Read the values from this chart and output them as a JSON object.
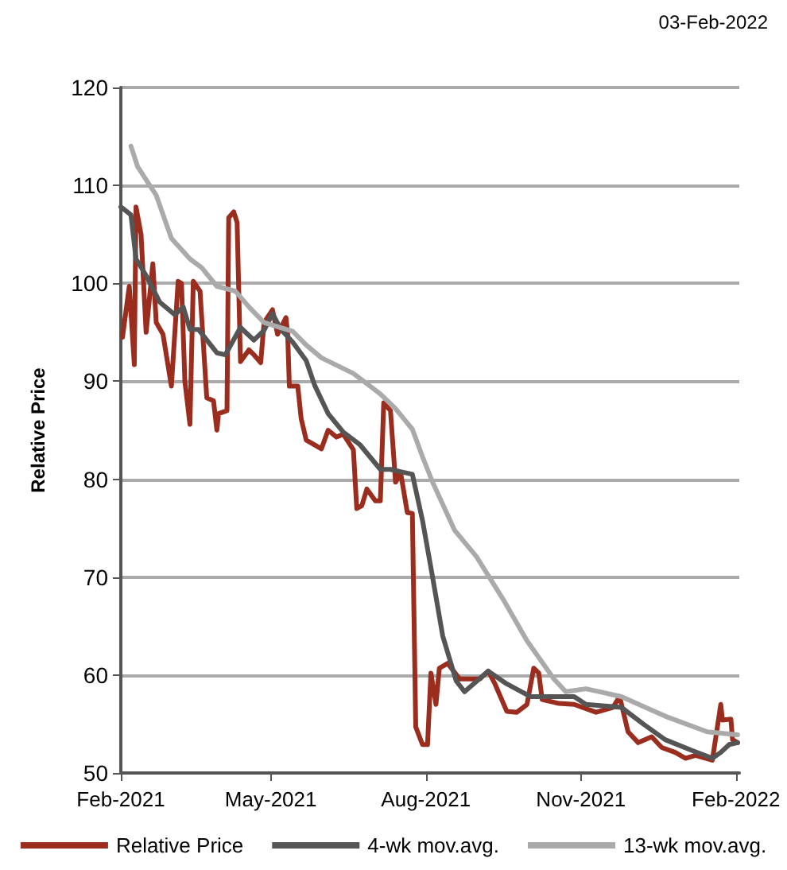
{
  "chart_data": {
    "type": "line",
    "annotations": [
      "03-Feb-2022"
    ],
    "ylabel": "Relative Price",
    "xlim": [
      "2021-02-01",
      "2022-02-03"
    ],
    "xticks": [
      {
        "value": "2021-02-01",
        "label": "Feb-2021"
      },
      {
        "value": "2021-05-01",
        "label": "May-2021"
      },
      {
        "value": "2021-08-01",
        "label": "Aug-2021"
      },
      {
        "value": "2021-11-01",
        "label": "Nov-2021"
      },
      {
        "value": "2022-02-01",
        "label": "Feb-2022"
      }
    ],
    "ylim": [
      50,
      120
    ],
    "yticks": [
      50,
      60,
      70,
      80,
      90,
      100,
      110,
      120
    ],
    "grid": "y",
    "legend": "bottom",
    "marker": "none",
    "line_style": "solid",
    "series": [
      {
        "name": "Relative Price",
        "color": "#9b2d1f",
        "x": [
          "2021-02-02",
          "2021-02-06",
          "2021-02-09",
          "2021-02-10",
          "2021-02-13",
          "2021-02-16",
          "2021-02-20",
          "2021-02-22",
          "2021-02-26",
          "2021-03-03",
          "2021-03-07",
          "2021-03-09",
          "2021-03-11",
          "2021-03-14",
          "2021-03-16",
          "2021-03-20",
          "2021-03-24",
          "2021-03-28",
          "2021-03-30",
          "2021-03-31",
          "2021-04-05",
          "2021-04-06",
          "2021-04-09",
          "2021-04-11",
          "2021-04-13",
          "2021-04-18",
          "2021-04-21",
          "2021-04-25",
          "2021-04-27",
          "2021-05-02",
          "2021-05-05",
          "2021-05-10",
          "2021-05-11",
          "2021-05-12",
          "2021-05-17",
          "2021-05-19",
          "2021-05-22",
          "2021-05-31",
          "2021-06-04",
          "2021-06-09",
          "2021-06-13",
          "2021-06-19",
          "2021-06-21",
          "2021-06-24",
          "2021-06-27",
          "2021-07-02",
          "2021-07-05",
          "2021-07-07",
          "2021-07-11",
          "2021-07-14",
          "2021-07-17",
          "2021-07-21",
          "2021-07-24",
          "2021-07-26",
          "2021-07-30",
          "2021-08-02",
          "2021-08-04",
          "2021-08-07",
          "2021-08-09",
          "2021-08-14",
          "2021-08-21",
          "2021-09-02",
          "2021-09-07",
          "2021-09-11",
          "2021-09-18",
          "2021-09-24",
          "2021-09-30",
          "2021-10-04",
          "2021-10-07",
          "2021-10-09",
          "2021-10-19",
          "2021-10-28",
          "2021-11-10",
          "2021-11-20",
          "2021-11-24",
          "2021-11-29",
          "2021-12-05",
          "2021-12-13",
          "2021-12-19",
          "2021-12-27",
          "2022-01-02",
          "2022-01-08",
          "2022-01-18",
          "2022-01-23",
          "2022-01-24",
          "2022-01-29",
          "2022-01-30",
          "2022-02-02"
        ],
        "values": [
          94.5,
          99.7,
          91.7,
          107.8,
          105,
          95,
          102,
          96,
          94.8,
          89.5,
          100.2,
          100,
          90,
          85.6,
          100.2,
          99.2,
          88.3,
          88,
          85,
          86.7,
          87,
          106.7,
          107.3,
          106.2,
          92,
          93.2,
          92.7,
          91.9,
          96,
          97.3,
          94.8,
          96.5,
          94.8,
          89.5,
          89.5,
          86.2,
          84,
          83.1,
          85,
          84.3,
          84.6,
          83,
          77,
          77.3,
          79,
          77.8,
          77.8,
          87.8,
          87,
          79.7,
          80.7,
          76.6,
          76.5,
          54.7,
          52.9,
          52.9,
          60.2,
          57,
          60.7,
          61.2,
          59.6,
          59.6,
          60.4,
          59.1,
          56.3,
          56.2,
          57,
          60.7,
          60.2,
          57.5,
          57.1,
          57,
          56.2,
          56.7,
          57.8,
          54.2,
          53.1,
          53.7,
          52.6,
          52.1,
          51.5,
          51.8,
          51.3,
          57,
          55.4,
          55.5,
          53.4,
          53.1
        ]
      },
      {
        "name": "4-wk mov.avg.",
        "color": "#555555",
        "x": [
          "2021-02-01",
          "2021-02-07",
          "2021-02-10",
          "2021-02-16",
          "2021-02-24",
          "2021-03-05",
          "2021-03-10",
          "2021-03-14",
          "2021-03-19",
          "2021-03-30",
          "2021-04-04",
          "2021-04-13",
          "2021-04-21",
          "2021-04-27",
          "2021-05-02",
          "2021-05-07",
          "2021-05-14",
          "2021-05-22",
          "2021-05-27",
          "2021-06-04",
          "2021-06-13",
          "2021-06-23",
          "2021-07-05",
          "2021-07-11",
          "2021-07-24",
          "2021-07-30",
          "2021-08-05",
          "2021-08-11",
          "2021-08-19",
          "2021-08-24",
          "2021-09-07",
          "2021-09-18",
          "2021-10-02",
          "2021-10-28",
          "2021-11-04",
          "2021-11-25",
          "2021-12-08",
          "2021-12-21",
          "2022-01-06",
          "2022-01-18",
          "2022-01-23",
          "2022-01-28",
          "2022-02-02"
        ],
        "values": [
          107.8,
          107,
          102.5,
          100.8,
          98.1,
          96.8,
          97.6,
          95.3,
          95.3,
          92.9,
          92.7,
          95.5,
          94.2,
          95.2,
          96.9,
          95.3,
          94,
          92.1,
          89.6,
          86.7,
          84.8,
          83.5,
          81,
          81,
          80.5,
          75.8,
          70,
          64,
          59.4,
          58.3,
          60.4,
          59.1,
          57.8,
          57.8,
          57,
          56.7,
          55,
          53.4,
          52.3,
          51.5,
          52.1,
          52.9,
          53.1
        ]
      },
      {
        "name": "13-wk mov.avg.",
        "color": "#aaaaaa",
        "x": [
          "2021-02-07",
          "2021-02-11",
          "2021-02-17",
          "2021-02-22",
          "2021-03-03",
          "2021-03-14",
          "2021-03-21",
          "2021-03-30",
          "2021-04-10",
          "2021-04-18",
          "2021-04-27",
          "2021-05-14",
          "2021-05-22",
          "2021-05-31",
          "2021-06-19",
          "2021-07-05",
          "2021-07-14",
          "2021-07-24",
          "2021-07-30",
          "2021-08-05",
          "2021-08-18",
          "2021-08-31",
          "2021-09-16",
          "2021-09-30",
          "2021-10-16",
          "2021-10-23",
          "2021-11-04",
          "2021-11-25",
          "2021-12-21",
          "2022-01-15",
          "2022-02-02"
        ],
        "values": [
          114,
          111.9,
          110.3,
          109,
          104.6,
          102.5,
          101.6,
          99.7,
          99.2,
          97.6,
          96,
          95.1,
          93.7,
          92.4,
          90.8,
          88.7,
          87.2,
          85.1,
          82.3,
          79.7,
          74.8,
          72.1,
          67.7,
          63.5,
          59.6,
          58.3,
          58.6,
          57.8,
          55.8,
          54.2,
          53.9
        ]
      }
    ]
  }
}
